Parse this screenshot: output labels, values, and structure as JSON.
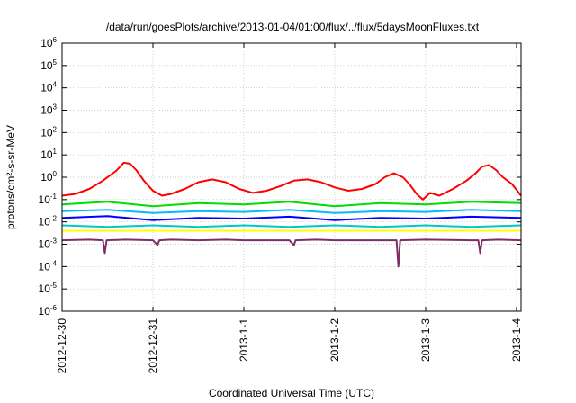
{
  "chart_data": {
    "type": "line",
    "title": "/data/run/goesPlots/archive/2013-01-04/01:00/flux/../flux/5daysMoonFluxes.txt",
    "xlabel": "Coordinated Universal Time (UTC)",
    "ylabel": "protons/cm²-s-sr-MeV",
    "y_scale": "log",
    "ylim": [
      1e-06,
      1000000.0
    ],
    "grid": true,
    "x_ticks": [
      "2012-12-30",
      "2012-12-31",
      "2013-1-1",
      "2013-1-2",
      "2013-1-3",
      "2013-1-4"
    ],
    "y_ticks": [
      {
        "base": "10",
        "exp": "-6"
      },
      {
        "base": "10",
        "exp": "-5"
      },
      {
        "base": "10",
        "exp": "-4"
      },
      {
        "base": "10",
        "exp": "-3"
      },
      {
        "base": "10",
        "exp": "-2"
      },
      {
        "base": "10",
        "exp": "-1"
      },
      {
        "base": "10",
        "exp": "0"
      },
      {
        "base": "10",
        "exp": "1"
      },
      {
        "base": "10",
        "exp": "2"
      },
      {
        "base": "10",
        "exp": "3"
      },
      {
        "base": "10",
        "exp": "4"
      },
      {
        "base": "10",
        "exp": "5"
      },
      {
        "base": "10",
        "exp": "6"
      }
    ],
    "xlim": [
      0,
      5.05
    ],
    "series": [
      {
        "color": "#ff0000",
        "x": [
          0,
          0.15,
          0.3,
          0.45,
          0.6,
          0.68,
          0.75,
          0.82,
          0.9,
          1.0,
          1.1,
          1.2,
          1.35,
          1.5,
          1.65,
          1.8,
          1.95,
          2.1,
          2.25,
          2.4,
          2.55,
          2.7,
          2.85,
          3.0,
          3.15,
          3.3,
          3.45,
          3.55,
          3.65,
          3.75,
          3.82,
          3.9,
          3.97,
          4.05,
          4.15,
          4.3,
          4.45,
          4.55,
          4.62,
          4.7,
          4.78,
          4.85,
          4.95,
          5.05
        ],
        "y": [
          0.15,
          0.18,
          0.3,
          0.7,
          2.0,
          4.5,
          4.0,
          2.0,
          0.7,
          0.25,
          0.15,
          0.18,
          0.3,
          0.6,
          0.8,
          0.6,
          0.3,
          0.2,
          0.25,
          0.4,
          0.7,
          0.8,
          0.6,
          0.35,
          0.25,
          0.3,
          0.5,
          1.0,
          1.5,
          1.0,
          0.5,
          0.18,
          0.1,
          0.2,
          0.15,
          0.3,
          0.7,
          1.5,
          3.0,
          3.5,
          2.0,
          1.0,
          0.5,
          0.15
        ]
      },
      {
        "color": "#00dd00",
        "x": [
          0,
          0.5,
          1.0,
          1.5,
          2.0,
          2.5,
          3.0,
          3.5,
          4.0,
          4.5,
          5.05
        ],
        "y": [
          0.06,
          0.08,
          0.05,
          0.07,
          0.06,
          0.08,
          0.05,
          0.07,
          0.06,
          0.08,
          0.07
        ]
      },
      {
        "color": "#00bbff",
        "x": [
          0,
          0.5,
          1.0,
          1.5,
          2.0,
          2.5,
          3.0,
          3.5,
          4.0,
          4.5,
          5.05
        ],
        "y": [
          0.03,
          0.035,
          0.025,
          0.03,
          0.028,
          0.035,
          0.025,
          0.03,
          0.028,
          0.035,
          0.03
        ]
      },
      {
        "color": "#0000ff",
        "x": [
          0,
          0.5,
          1.0,
          1.5,
          2.0,
          2.5,
          3.0,
          3.5,
          4.0,
          4.5,
          5.05
        ],
        "y": [
          0.015,
          0.018,
          0.012,
          0.015,
          0.014,
          0.017,
          0.012,
          0.015,
          0.014,
          0.017,
          0.015
        ]
      },
      {
        "color": "#00c8c8",
        "x": [
          0,
          0.5,
          1.0,
          1.5,
          2.0,
          2.5,
          3.0,
          3.5,
          4.0,
          4.5,
          5.05
        ],
        "y": [
          0.007,
          0.006,
          0.007,
          0.006,
          0.007,
          0.006,
          0.007,
          0.006,
          0.007,
          0.006,
          0.007
        ]
      },
      {
        "color": "#ffff00",
        "x": [
          0,
          0.5,
          1.0,
          1.5,
          2.0,
          2.5,
          3.0,
          3.5,
          4.0,
          4.5,
          5.05
        ],
        "y": [
          0.004,
          0.004,
          0.004,
          0.004,
          0.004,
          0.004,
          0.004,
          0.004,
          0.004,
          0.004,
          0.004
        ]
      },
      {
        "color": "#7d2f63",
        "x": [
          0,
          0.3,
          0.45,
          0.47,
          0.49,
          0.7,
          1.0,
          1.05,
          1.07,
          1.2,
          1.5,
          1.8,
          2.0,
          2.5,
          2.55,
          2.57,
          2.8,
          3.0,
          3.5,
          3.68,
          3.7,
          3.72,
          4.0,
          4.5,
          4.58,
          4.6,
          4.62,
          4.8,
          5.05
        ],
        "y": [
          0.0015,
          0.0016,
          0.0015,
          0.0004,
          0.0015,
          0.0016,
          0.0015,
          0.0009,
          0.0015,
          0.0016,
          0.0015,
          0.0016,
          0.0015,
          0.0015,
          0.0009,
          0.0015,
          0.0016,
          0.0015,
          0.0015,
          0.0015,
          0.0001,
          0.0015,
          0.0016,
          0.0015,
          0.0015,
          0.0004,
          0.0015,
          0.0016,
          0.0015
        ]
      }
    ]
  }
}
